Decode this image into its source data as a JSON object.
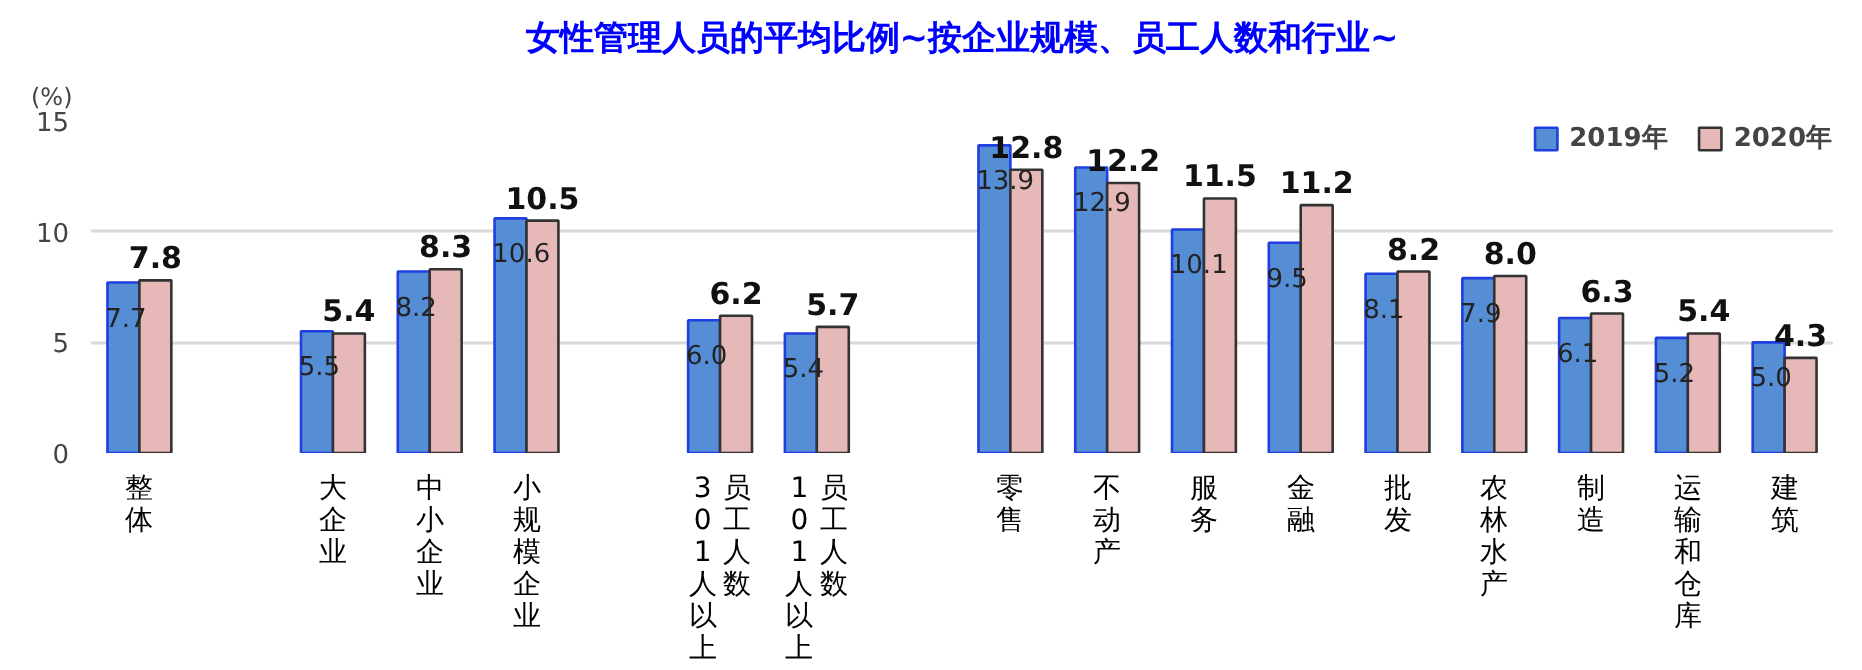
{
  "chart_data": {
    "type": "bar",
    "title": "女性管理人员的平均比例~按企业规模、员工人数和行业~",
    "ylabel": "(%)",
    "categories": [
      "整体",
      null,
      "大企业",
      "中小企业",
      "小规模企业",
      null,
      "员工人数\n301人以上",
      "员工人数\n101人以上",
      null,
      "零售",
      "不动产",
      "服务",
      "金融",
      "批发",
      "农林水产",
      "制造",
      "运输和仓库",
      "建筑"
    ],
    "series": [
      {
        "name": "2019年",
        "color": "#558ed5",
        "values": [
          7.7,
          null,
          5.5,
          8.2,
          10.6,
          null,
          6.0,
          5.4,
          null,
          13.9,
          12.9,
          10.1,
          9.5,
          8.1,
          7.9,
          6.1,
          5.2,
          5.0
        ],
        "value_labels": [
          "7.7",
          null,
          "5.5",
          "8.2",
          "10.6",
          null,
          "6.0",
          "5.4",
          null,
          "13.9",
          "12.9",
          "10.1",
          "9.5",
          "8.1",
          "7.9",
          "6.1",
          "5.2",
          "5.0"
        ]
      },
      {
        "name": "2020年",
        "color": "#e6b9b8",
        "values": [
          7.8,
          null,
          5.4,
          8.3,
          10.5,
          null,
          6.2,
          5.7,
          null,
          12.8,
          12.2,
          11.5,
          11.2,
          8.2,
          8.0,
          6.3,
          5.4,
          4.3
        ],
        "value_labels": [
          "7.8",
          null,
          "5.4",
          "8.3",
          "10.5",
          null,
          "6.2",
          "5.7",
          null,
          "12.8",
          "12.2",
          "11.5",
          "11.2",
          "8.2",
          "8.0",
          "6.3",
          "5.4",
          "4.3"
        ]
      }
    ],
    "ylim": [
      0,
      15
    ],
    "yticks": [
      0,
      5,
      10,
      15
    ],
    "grid": "y",
    "legend": "top right"
  }
}
